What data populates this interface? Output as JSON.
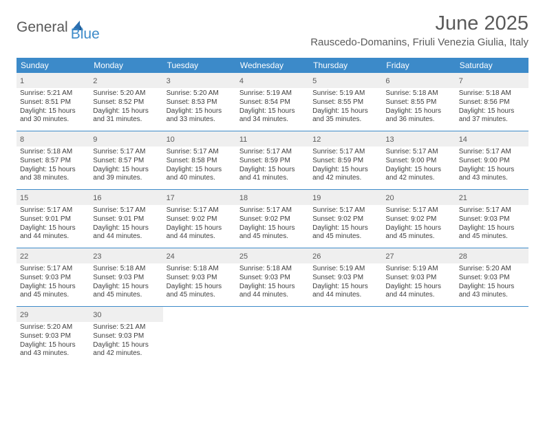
{
  "brand": {
    "word1": "General",
    "word2": "Blue"
  },
  "title": "June 2025",
  "location": "Rauscedo-Domanins, Friuli Venezia Giulia, Italy",
  "header_bg": "#3c8ac9",
  "daynum_bg": "#efefef",
  "text_color": "#3e3e3e",
  "title_color": "#5a5a5a",
  "day_names": [
    "Sunday",
    "Monday",
    "Tuesday",
    "Wednesday",
    "Thursday",
    "Friday",
    "Saturday"
  ],
  "cell_fontsize": 10,
  "header_fontsize": 12,
  "weeks": [
    [
      {
        "n": "1",
        "sr": "Sunrise: 5:21 AM",
        "ss": "Sunset: 8:51 PM",
        "d1": "Daylight: 15 hours",
        "d2": "and 30 minutes."
      },
      {
        "n": "2",
        "sr": "Sunrise: 5:20 AM",
        "ss": "Sunset: 8:52 PM",
        "d1": "Daylight: 15 hours",
        "d2": "and 31 minutes."
      },
      {
        "n": "3",
        "sr": "Sunrise: 5:20 AM",
        "ss": "Sunset: 8:53 PM",
        "d1": "Daylight: 15 hours",
        "d2": "and 33 minutes."
      },
      {
        "n": "4",
        "sr": "Sunrise: 5:19 AM",
        "ss": "Sunset: 8:54 PM",
        "d1": "Daylight: 15 hours",
        "d2": "and 34 minutes."
      },
      {
        "n": "5",
        "sr": "Sunrise: 5:19 AM",
        "ss": "Sunset: 8:55 PM",
        "d1": "Daylight: 15 hours",
        "d2": "and 35 minutes."
      },
      {
        "n": "6",
        "sr": "Sunrise: 5:18 AM",
        "ss": "Sunset: 8:55 PM",
        "d1": "Daylight: 15 hours",
        "d2": "and 36 minutes."
      },
      {
        "n": "7",
        "sr": "Sunrise: 5:18 AM",
        "ss": "Sunset: 8:56 PM",
        "d1": "Daylight: 15 hours",
        "d2": "and 37 minutes."
      }
    ],
    [
      {
        "n": "8",
        "sr": "Sunrise: 5:18 AM",
        "ss": "Sunset: 8:57 PM",
        "d1": "Daylight: 15 hours",
        "d2": "and 38 minutes."
      },
      {
        "n": "9",
        "sr": "Sunrise: 5:17 AM",
        "ss": "Sunset: 8:57 PM",
        "d1": "Daylight: 15 hours",
        "d2": "and 39 minutes."
      },
      {
        "n": "10",
        "sr": "Sunrise: 5:17 AM",
        "ss": "Sunset: 8:58 PM",
        "d1": "Daylight: 15 hours",
        "d2": "and 40 minutes."
      },
      {
        "n": "11",
        "sr": "Sunrise: 5:17 AM",
        "ss": "Sunset: 8:59 PM",
        "d1": "Daylight: 15 hours",
        "d2": "and 41 minutes."
      },
      {
        "n": "12",
        "sr": "Sunrise: 5:17 AM",
        "ss": "Sunset: 8:59 PM",
        "d1": "Daylight: 15 hours",
        "d2": "and 42 minutes."
      },
      {
        "n": "13",
        "sr": "Sunrise: 5:17 AM",
        "ss": "Sunset: 9:00 PM",
        "d1": "Daylight: 15 hours",
        "d2": "and 42 minutes."
      },
      {
        "n": "14",
        "sr": "Sunrise: 5:17 AM",
        "ss": "Sunset: 9:00 PM",
        "d1": "Daylight: 15 hours",
        "d2": "and 43 minutes."
      }
    ],
    [
      {
        "n": "15",
        "sr": "Sunrise: 5:17 AM",
        "ss": "Sunset: 9:01 PM",
        "d1": "Daylight: 15 hours",
        "d2": "and 44 minutes."
      },
      {
        "n": "16",
        "sr": "Sunrise: 5:17 AM",
        "ss": "Sunset: 9:01 PM",
        "d1": "Daylight: 15 hours",
        "d2": "and 44 minutes."
      },
      {
        "n": "17",
        "sr": "Sunrise: 5:17 AM",
        "ss": "Sunset: 9:02 PM",
        "d1": "Daylight: 15 hours",
        "d2": "and 44 minutes."
      },
      {
        "n": "18",
        "sr": "Sunrise: 5:17 AM",
        "ss": "Sunset: 9:02 PM",
        "d1": "Daylight: 15 hours",
        "d2": "and 45 minutes."
      },
      {
        "n": "19",
        "sr": "Sunrise: 5:17 AM",
        "ss": "Sunset: 9:02 PM",
        "d1": "Daylight: 15 hours",
        "d2": "and 45 minutes."
      },
      {
        "n": "20",
        "sr": "Sunrise: 5:17 AM",
        "ss": "Sunset: 9:02 PM",
        "d1": "Daylight: 15 hours",
        "d2": "and 45 minutes."
      },
      {
        "n": "21",
        "sr": "Sunrise: 5:17 AM",
        "ss": "Sunset: 9:03 PM",
        "d1": "Daylight: 15 hours",
        "d2": "and 45 minutes."
      }
    ],
    [
      {
        "n": "22",
        "sr": "Sunrise: 5:17 AM",
        "ss": "Sunset: 9:03 PM",
        "d1": "Daylight: 15 hours",
        "d2": "and 45 minutes."
      },
      {
        "n": "23",
        "sr": "Sunrise: 5:18 AM",
        "ss": "Sunset: 9:03 PM",
        "d1": "Daylight: 15 hours",
        "d2": "and 45 minutes."
      },
      {
        "n": "24",
        "sr": "Sunrise: 5:18 AM",
        "ss": "Sunset: 9:03 PM",
        "d1": "Daylight: 15 hours",
        "d2": "and 45 minutes."
      },
      {
        "n": "25",
        "sr": "Sunrise: 5:18 AM",
        "ss": "Sunset: 9:03 PM",
        "d1": "Daylight: 15 hours",
        "d2": "and 44 minutes."
      },
      {
        "n": "26",
        "sr": "Sunrise: 5:19 AM",
        "ss": "Sunset: 9:03 PM",
        "d1": "Daylight: 15 hours",
        "d2": "and 44 minutes."
      },
      {
        "n": "27",
        "sr": "Sunrise: 5:19 AM",
        "ss": "Sunset: 9:03 PM",
        "d1": "Daylight: 15 hours",
        "d2": "and 44 minutes."
      },
      {
        "n": "28",
        "sr": "Sunrise: 5:20 AM",
        "ss": "Sunset: 9:03 PM",
        "d1": "Daylight: 15 hours",
        "d2": "and 43 minutes."
      }
    ],
    [
      {
        "n": "29",
        "sr": "Sunrise: 5:20 AM",
        "ss": "Sunset: 9:03 PM",
        "d1": "Daylight: 15 hours",
        "d2": "and 43 minutes."
      },
      {
        "n": "30",
        "sr": "Sunrise: 5:21 AM",
        "ss": "Sunset: 9:03 PM",
        "d1": "Daylight: 15 hours",
        "d2": "and 42 minutes."
      },
      null,
      null,
      null,
      null,
      null
    ]
  ]
}
